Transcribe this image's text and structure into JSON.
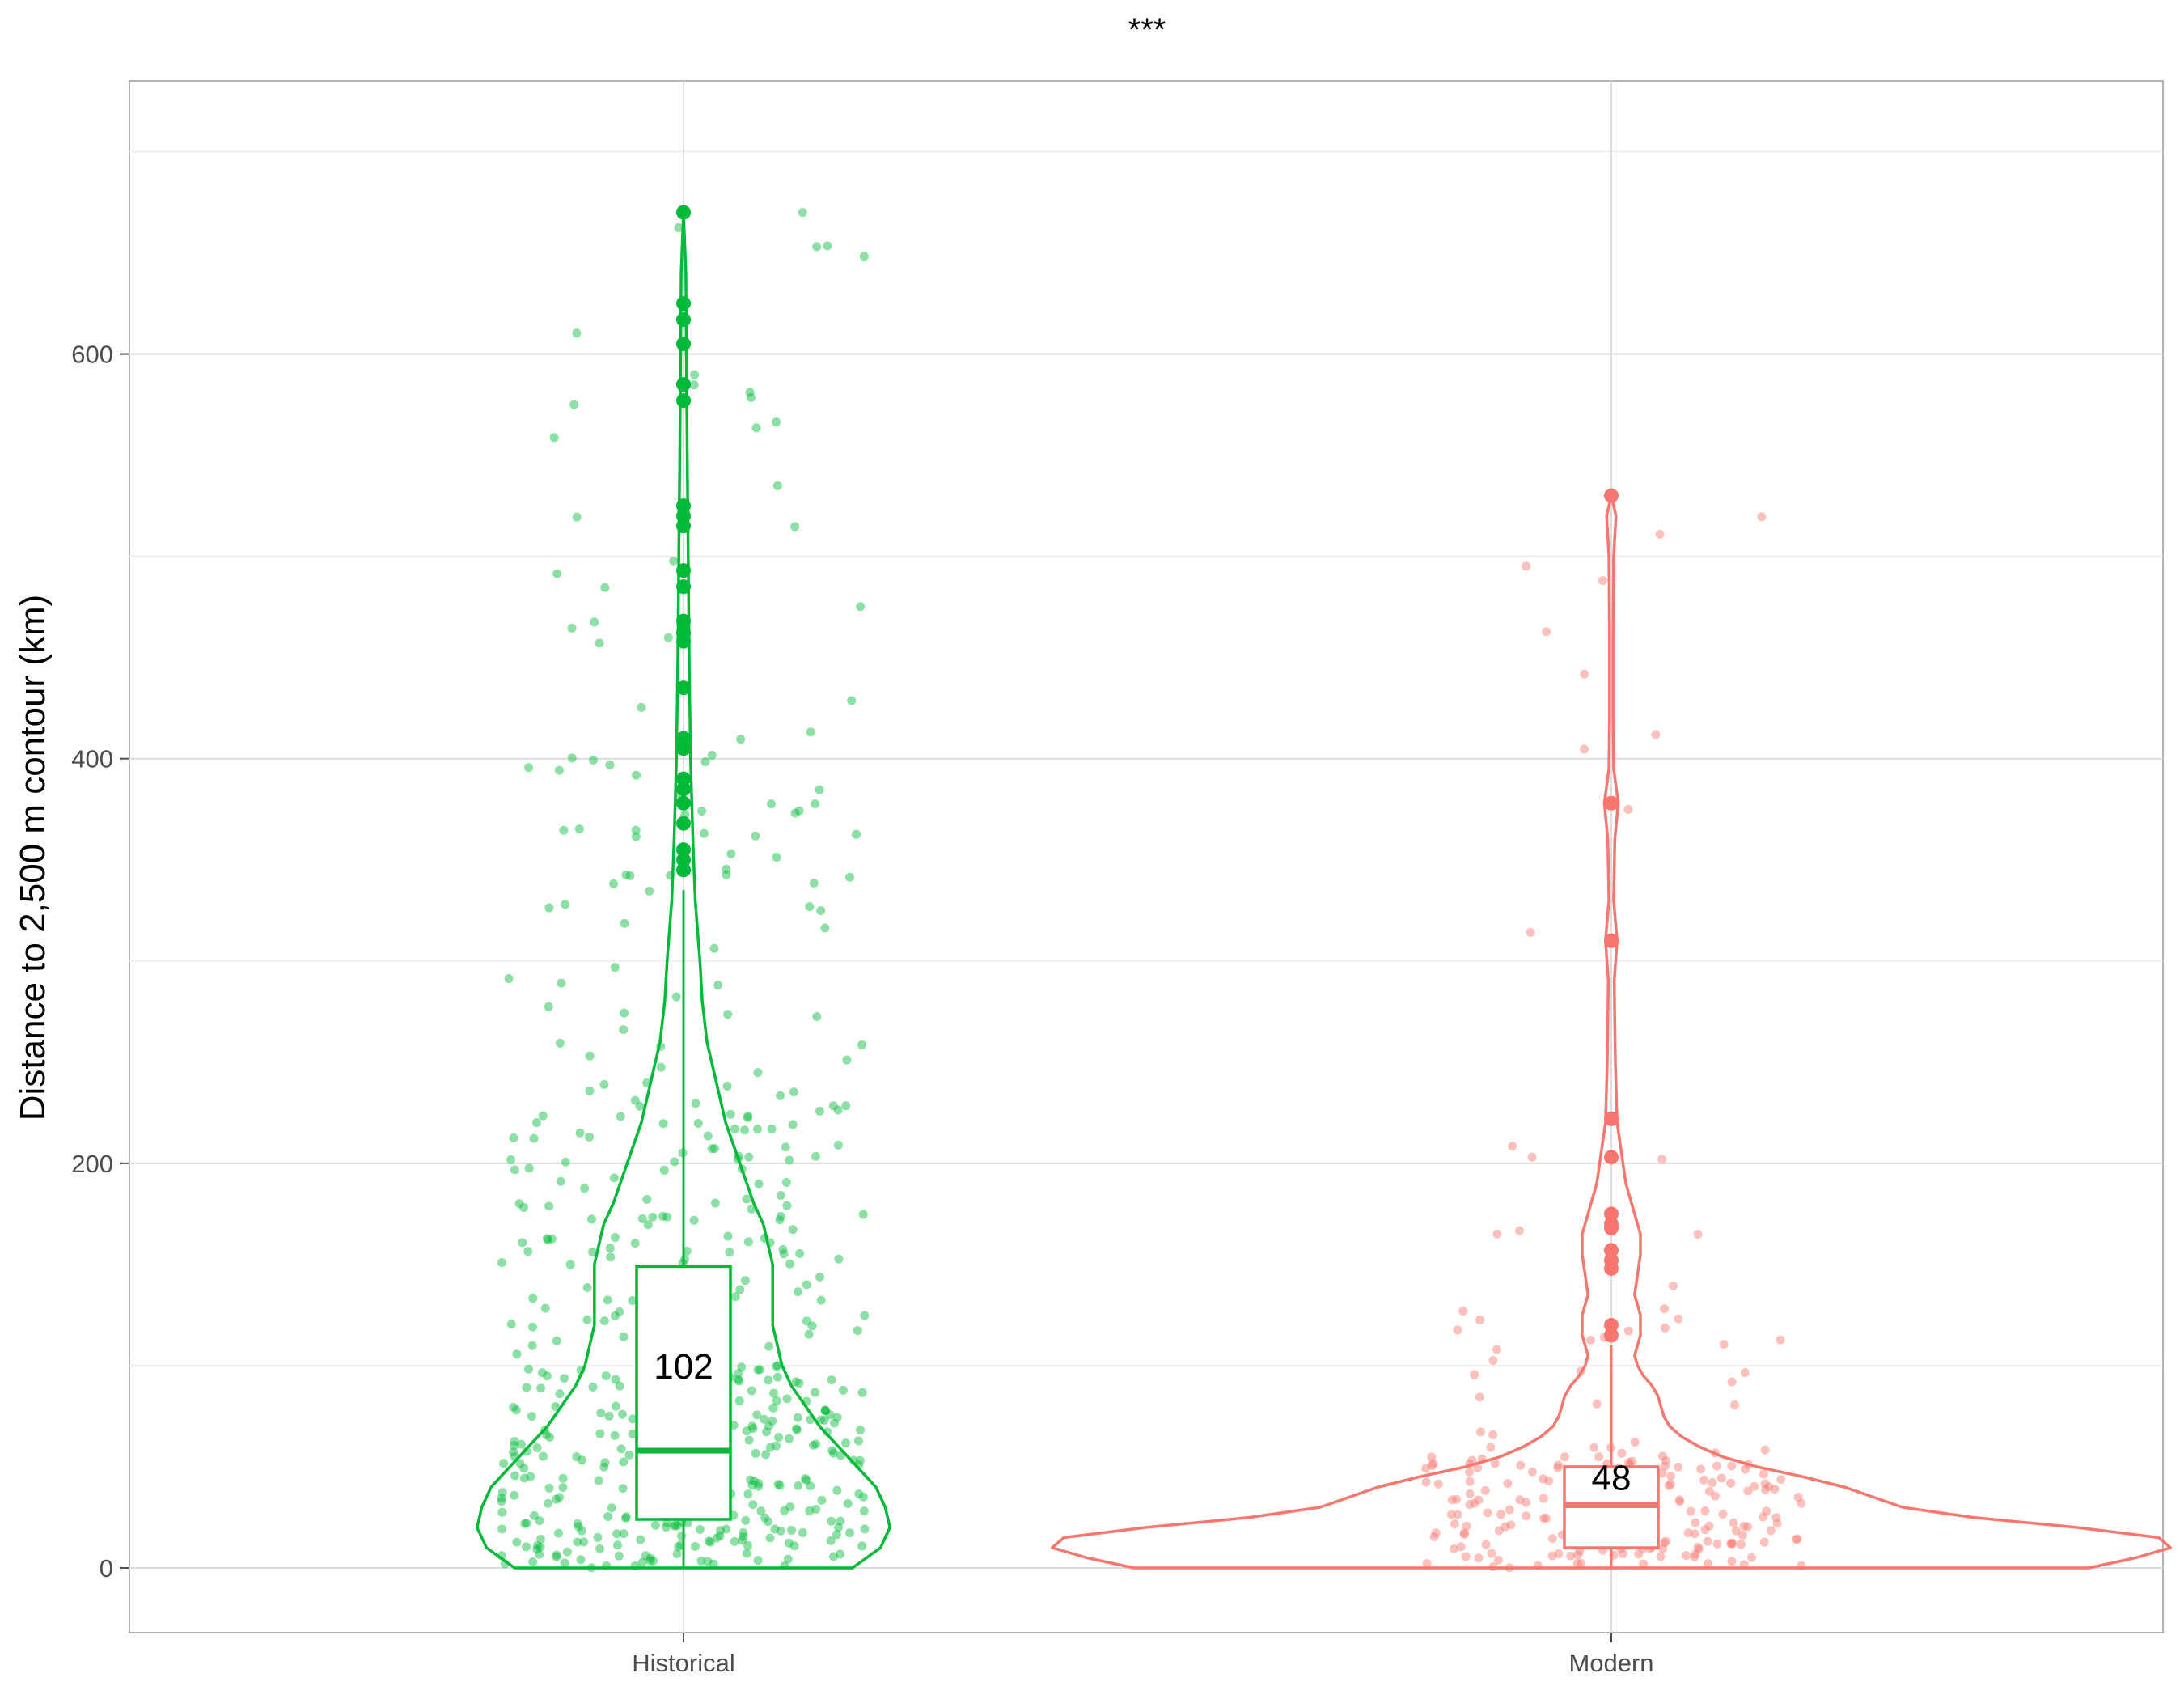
{
  "chart_data": {
    "type": "violin",
    "title": "***",
    "xlabel": "",
    "ylabel": "Distance to 2,500 m contour (km)",
    "ylim": [
      -32,
      735
    ],
    "yticks": [
      0,
      200,
      400,
      600
    ],
    "grid": true,
    "legend": "none",
    "categories": [
      "Historical",
      "Modern"
    ],
    "series": [
      {
        "category": "Historical",
        "color": "#00BA38",
        "box": {
          "min": 0,
          "q1": 24,
          "median": 58,
          "q3": 149,
          "whisker_high": 335
        },
        "label": "102",
        "outliers": [
          345,
          350,
          355,
          368,
          378,
          385,
          390,
          405,
          410,
          435,
          458,
          462,
          468,
          485,
          493,
          515,
          520,
          525,
          577,
          585,
          605,
          617,
          625,
          670
        ],
        "violin": [
          [
            0,
            0.36
          ],
          [
            10,
            0.42
          ],
          [
            20,
            0.44
          ],
          [
            30,
            0.43
          ],
          [
            40,
            0.41
          ],
          [
            50,
            0.37
          ],
          [
            60,
            0.33
          ],
          [
            70,
            0.29
          ],
          [
            80,
            0.26
          ],
          [
            90,
            0.23
          ],
          [
            100,
            0.21
          ],
          [
            110,
            0.2
          ],
          [
            120,
            0.19
          ],
          [
            130,
            0.19
          ],
          [
            140,
            0.19
          ],
          [
            150,
            0.19
          ],
          [
            160,
            0.18
          ],
          [
            170,
            0.17
          ],
          [
            180,
            0.15
          ],
          [
            200,
            0.12
          ],
          [
            220,
            0.09
          ],
          [
            240,
            0.07
          ],
          [
            260,
            0.05
          ],
          [
            280,
            0.04
          ],
          [
            300,
            0.035
          ],
          [
            330,
            0.025
          ],
          [
            360,
            0.02
          ],
          [
            400,
            0.015
          ],
          [
            450,
            0.012
          ],
          [
            500,
            0.01
          ],
          [
            550,
            0.008
          ],
          [
            600,
            0.006
          ],
          [
            640,
            0.005
          ],
          [
            670,
            0.0
          ]
        ]
      },
      {
        "category": "Modern",
        "color": "#F8766D",
        "box": {
          "min": 0,
          "q1": 10,
          "median": 31,
          "q3": 50,
          "whisker_high": 110
        },
        "label": "48",
        "outliers": [
          115,
          120,
          148,
          152,
          157,
          168,
          170,
          175,
          203,
          222,
          310,
          378,
          530
        ],
        "violin": [
          [
            0,
            0.82
          ],
          [
            5,
            0.9
          ],
          [
            10,
            0.96
          ],
          [
            15,
            0.94
          ],
          [
            20,
            0.8
          ],
          [
            25,
            0.62
          ],
          [
            30,
            0.5
          ],
          [
            35,
            0.45
          ],
          [
            40,
            0.4
          ],
          [
            45,
            0.33
          ],
          [
            50,
            0.25
          ],
          [
            55,
            0.19
          ],
          [
            60,
            0.15
          ],
          [
            65,
            0.12
          ],
          [
            70,
            0.1
          ],
          [
            75,
            0.09
          ],
          [
            80,
            0.085
          ],
          [
            85,
            0.08
          ],
          [
            90,
            0.07
          ],
          [
            95,
            0.055
          ],
          [
            100,
            0.045
          ],
          [
            105,
            0.04
          ],
          [
            110,
            0.045
          ],
          [
            115,
            0.05
          ],
          [
            125,
            0.05
          ],
          [
            135,
            0.04
          ],
          [
            145,
            0.045
          ],
          [
            155,
            0.05
          ],
          [
            165,
            0.05
          ],
          [
            175,
            0.04
          ],
          [
            190,
            0.025
          ],
          [
            200,
            0.02
          ],
          [
            220,
            0.01
          ],
          [
            250,
            0.007
          ],
          [
            290,
            0.005
          ],
          [
            310,
            0.01
          ],
          [
            330,
            0.004
          ],
          [
            360,
            0.006
          ],
          [
            378,
            0.012
          ],
          [
            395,
            0.004
          ],
          [
            420,
            0.003
          ],
          [
            460,
            0.003
          ],
          [
            500,
            0.004
          ],
          [
            520,
            0.008
          ],
          [
            530,
            0.0
          ]
        ]
      }
    ]
  }
}
